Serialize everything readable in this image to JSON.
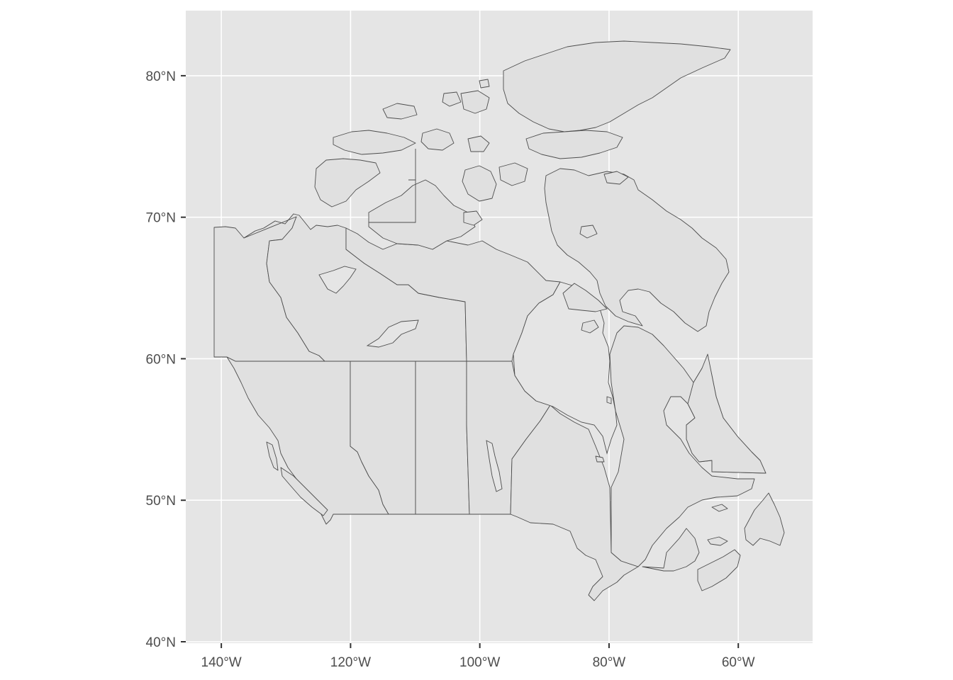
{
  "map": {
    "x_axis": {
      "ticks": [
        {
          "value": -140,
          "label": "140°W"
        },
        {
          "value": -120,
          "label": "120°W"
        },
        {
          "value": -100,
          "label": "100°W"
        },
        {
          "value": -80,
          "label": "80°W"
        },
        {
          "value": -60,
          "label": "60°W"
        }
      ],
      "range": [
        -145.5,
        -48.5
      ]
    },
    "y_axis": {
      "ticks": [
        {
          "value": 40,
          "label": "40°N"
        },
        {
          "value": 50,
          "label": "50°N"
        },
        {
          "value": 60,
          "label": "60°N"
        },
        {
          "value": 70,
          "label": "70°N"
        },
        {
          "value": 80,
          "label": "80°N"
        }
      ],
      "range": [
        39.9,
        84.6
      ]
    },
    "panel_color": "#e5e5e5",
    "land_color": "#e0e0e0",
    "border_color": "#4d4d4d",
    "grid_color": "#ffffff",
    "grid": true
  }
}
